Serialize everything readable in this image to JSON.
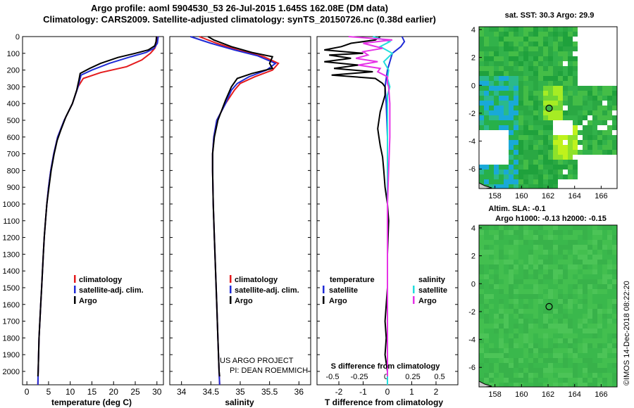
{
  "header": {
    "line1": "Argo profile: aoml 5904530_53 26-Jul-2015 1.645S 162.08E (DM data)",
    "line2": "Climatology: CARS2009. Satellite-adjusted climatology: synTS_20150726.nc (0.38d earlier)"
  },
  "colors": {
    "climatology": "#e41a1c",
    "satellite": "#1f2bd6",
    "argo": "#000000",
    "sat_salinity": "#22dddd",
    "argo_salinity": "#e633e6"
  },
  "chart_data": [
    {
      "type": "line",
      "name": "temperature",
      "xlabel": "temperature (deg C)",
      "xlim": [
        -1,
        31.5
      ],
      "xticks": [
        0,
        5,
        10,
        15,
        20,
        25,
        30
      ],
      "ylim": [
        2080,
        0
      ],
      "yticks": [
        0,
        100,
        200,
        300,
        400,
        500,
        600,
        700,
        800,
        900,
        1000,
        1100,
        1200,
        1300,
        1400,
        1500,
        1600,
        1700,
        1800,
        1900,
        2000
      ],
      "legend": [
        "climatology",
        "satellite-adj. clim.",
        "Argo"
      ],
      "series": [
        {
          "name": "climatology",
          "points": [
            [
              30.2,
              0
            ],
            [
              30,
              40
            ],
            [
              29.5,
              70
            ],
            [
              28.5,
              100
            ],
            [
              26.5,
              140
            ],
            [
              23,
              180
            ],
            [
              17,
              215
            ],
            [
              13,
              250
            ],
            [
              11.8,
              300
            ],
            [
              10.5,
              400
            ],
            [
              8.6,
              500
            ],
            [
              7.1,
              600
            ],
            [
              6.2,
              700
            ],
            [
              5.5,
              800
            ],
            [
              5.0,
              900
            ],
            [
              4.6,
              1000
            ],
            [
              4.3,
              1100
            ],
            [
              4.0,
              1200
            ],
            [
              3.8,
              1300
            ],
            [
              3.6,
              1400
            ],
            [
              3.4,
              1500
            ],
            [
              3.2,
              1600
            ],
            [
              3.0,
              1700
            ],
            [
              2.8,
              1800
            ],
            [
              2.7,
              1900
            ],
            [
              2.6,
              2000
            ],
            [
              2.55,
              2080
            ]
          ]
        },
        {
          "name": "satellite-adj. clim.",
          "points": [
            [
              30.3,
              0
            ],
            [
              30.1,
              40
            ],
            [
              29.3,
              70
            ],
            [
              27.5,
              95
            ],
            [
              24,
              120
            ],
            [
              19,
              160
            ],
            [
              15,
              200
            ],
            [
              12.5,
              230
            ],
            [
              11.8,
              300
            ],
            [
              10.5,
              400
            ],
            [
              8.6,
              500
            ],
            [
              7.1,
              600
            ],
            [
              6.2,
              700
            ],
            [
              5.5,
              800
            ],
            [
              5.0,
              900
            ],
            [
              4.6,
              1000
            ],
            [
              4.3,
              1100
            ],
            [
              4.0,
              1200
            ],
            [
              3.8,
              1300
            ],
            [
              3.6,
              1400
            ],
            [
              3.4,
              1500
            ],
            [
              3.2,
              1600
            ],
            [
              3.0,
              1700
            ],
            [
              2.8,
              1800
            ],
            [
              2.7,
              1900
            ],
            [
              2.6,
              2000
            ],
            [
              2.55,
              2080
            ]
          ]
        },
        {
          "name": "Argo",
          "points": [
            [
              29.9,
              0
            ],
            [
              29.8,
              30
            ],
            [
              29.5,
              55
            ],
            [
              28,
              80
            ],
            [
              25,
              100
            ],
            [
              21,
              125
            ],
            [
              17,
              160
            ],
            [
              14.5,
              190
            ],
            [
              12.3,
              220
            ],
            [
              12,
              260
            ],
            [
              11.5,
              320
            ],
            [
              10.5,
              400
            ],
            [
              9,
              480
            ],
            [
              7.8,
              560
            ],
            [
              7,
              620
            ],
            [
              6.3,
              700
            ],
            [
              5.6,
              800
            ],
            [
              5.1,
              900
            ],
            [
              4.6,
              1000
            ],
            [
              4.3,
              1100
            ],
            [
              4.0,
              1200
            ],
            [
              3.8,
              1300
            ],
            [
              3.6,
              1400
            ],
            [
              3.4,
              1500
            ],
            [
              3.2,
              1600
            ],
            [
              3.0,
              1700
            ],
            [
              2.8,
              1800
            ],
            [
              2.7,
              1900
            ],
            [
              2.6,
              2000
            ],
            [
              2.55,
              2030
            ]
          ]
        }
      ]
    },
    {
      "type": "line",
      "name": "salinity",
      "xlabel": "salinity",
      "xlim": [
        33.8,
        36.2
      ],
      "xticks": [
        34,
        34.5,
        35,
        35.5,
        36
      ],
      "ylim": [
        2080,
        0
      ],
      "legend": [
        "climatology",
        "satellite-adj. clim.",
        "Argo"
      ],
      "annotation": [
        "US ARGO PROJECT",
        "PI: DEAN ROEMMICH"
      ],
      "series": [
        {
          "name": "climatology",
          "points": [
            [
              34.3,
              0
            ],
            [
              34.6,
              40
            ],
            [
              34.95,
              80
            ],
            [
              35.4,
              120
            ],
            [
              35.65,
              160
            ],
            [
              35.55,
              200
            ],
            [
              35.25,
              240
            ],
            [
              35.0,
              280
            ],
            [
              34.9,
              320
            ],
            [
              34.75,
              400
            ],
            [
              34.6,
              500
            ],
            [
              34.55,
              600
            ],
            [
              34.53,
              700
            ],
            [
              34.53,
              800
            ],
            [
              34.54,
              1000
            ],
            [
              34.56,
              1200
            ],
            [
              34.58,
              1400
            ],
            [
              34.6,
              1600
            ],
            [
              34.62,
              1800
            ],
            [
              34.64,
              2000
            ],
            [
              34.65,
              2080
            ]
          ]
        },
        {
          "name": "satellite-adj. clim.",
          "points": [
            [
              34.15,
              0
            ],
            [
              34.5,
              40
            ],
            [
              34.9,
              80
            ],
            [
              35.3,
              115
            ],
            [
              35.6,
              160
            ],
            [
              35.45,
              200
            ],
            [
              35.15,
              240
            ],
            [
              34.95,
              280
            ],
            [
              34.85,
              320
            ],
            [
              34.75,
              400
            ],
            [
              34.6,
              500
            ],
            [
              34.55,
              600
            ],
            [
              34.53,
              700
            ],
            [
              34.53,
              800
            ],
            [
              34.54,
              1000
            ],
            [
              34.56,
              1200
            ],
            [
              34.58,
              1400
            ],
            [
              34.6,
              1600
            ],
            [
              34.62,
              1800
            ],
            [
              34.64,
              2000
            ],
            [
              34.65,
              2080
            ]
          ]
        },
        {
          "name": "Argo",
          "points": [
            [
              34.45,
              0
            ],
            [
              34.55,
              20
            ],
            [
              34.85,
              60
            ],
            [
              35.2,
              95
            ],
            [
              35.55,
              120
            ],
            [
              35.5,
              160
            ],
            [
              35.55,
              190
            ],
            [
              35.2,
              220
            ],
            [
              34.95,
              250
            ],
            [
              34.85,
              300
            ],
            [
              34.75,
              380
            ],
            [
              34.62,
              500
            ],
            [
              34.56,
              600
            ],
            [
              34.53,
              700
            ],
            [
              34.53,
              800
            ],
            [
              34.54,
              1000
            ],
            [
              34.56,
              1200
            ],
            [
              34.58,
              1400
            ],
            [
              34.6,
              1600
            ],
            [
              34.62,
              1800
            ],
            [
              34.64,
              2000
            ],
            [
              34.65,
              2030
            ]
          ]
        }
      ]
    },
    {
      "type": "line",
      "name": "differences",
      "xlabel": "T difference from climatology",
      "title": "S difference from climatology",
      "xlim": [
        -2.9,
        2.9
      ],
      "xticks": [
        -2,
        -1,
        0,
        1,
        2
      ],
      "xticks_top": [
        "-0.5",
        "-0.25",
        "0",
        "0.25",
        "0.5"
      ],
      "ylim": [
        2080,
        0
      ],
      "legend_left": [
        "temperature",
        "satellite",
        "Argo"
      ],
      "legend_right": [
        "salinity",
        "satellite",
        "Argo"
      ],
      "series": [
        {
          "name": "temperature satellite",
          "points": [
            [
              0.6,
              0
            ],
            [
              0.7,
              30
            ],
            [
              0.55,
              60
            ],
            [
              0.2,
              100
            ],
            [
              0,
              200
            ],
            [
              -0.1,
              300
            ],
            [
              -0.05,
              400
            ],
            [
              0,
              600
            ],
            [
              0,
              1000
            ],
            [
              0,
              1500
            ],
            [
              0,
              2000
            ],
            [
              0,
              2080
            ]
          ]
        },
        {
          "name": "temperature Argo",
          "points": [
            [
              -0.3,
              0
            ],
            [
              -0.5,
              20
            ],
            [
              -1.5,
              40
            ],
            [
              -1.9,
              60
            ],
            [
              -2.6,
              80
            ],
            [
              -1.0,
              100
            ],
            [
              -2.4,
              110
            ],
            [
              -1.5,
              130
            ],
            [
              -2.6,
              150
            ],
            [
              -1.2,
              170
            ],
            [
              -2.2,
              190
            ],
            [
              -0.6,
              210
            ],
            [
              -2.3,
              230
            ],
            [
              -0.5,
              250
            ],
            [
              -0.2,
              280
            ],
            [
              -0.1,
              300
            ],
            [
              -0.1,
              350
            ],
            [
              -0.3,
              450
            ],
            [
              -0.4,
              550
            ],
            [
              -0.35,
              600
            ],
            [
              -0.3,
              650
            ],
            [
              -0.2,
              720
            ],
            [
              -0.15,
              800
            ],
            [
              -0.1,
              900
            ],
            [
              0,
              1000
            ],
            [
              0.05,
              1100
            ],
            [
              0,
              1300
            ],
            [
              0,
              1500
            ],
            [
              -0.1,
              1700
            ],
            [
              -0.05,
              1800
            ],
            [
              -0.1,
              1900
            ],
            [
              0,
              2000
            ],
            [
              0,
              2030
            ]
          ]
        },
        {
          "name": "salinity satellite",
          "points": [
            [
              -0.6,
              0
            ],
            [
              0.1,
              30
            ],
            [
              -0.3,
              60
            ],
            [
              0.2,
              100
            ],
            [
              -0.15,
              150
            ],
            [
              0.05,
              200
            ],
            [
              0,
              250
            ],
            [
              0.1,
              300
            ],
            [
              0,
              350
            ],
            [
              0,
              500
            ],
            [
              0,
              1000
            ],
            [
              0,
              1500
            ],
            [
              0,
              2000
            ],
            [
              0,
              2080
            ]
          ]
        },
        {
          "name": "salinity Argo",
          "points": [
            [
              -1.6,
              0
            ],
            [
              0.2,
              20
            ],
            [
              -1.0,
              40
            ],
            [
              -0.6,
              55
            ],
            [
              -0.2,
              70
            ],
            [
              -1.0,
              90
            ],
            [
              -0.8,
              110
            ],
            [
              -1.3,
              130
            ],
            [
              -0.4,
              150
            ],
            [
              -1.2,
              170
            ],
            [
              -0.3,
              190
            ],
            [
              -0.4,
              210
            ],
            [
              0,
              240
            ],
            [
              0,
              280
            ],
            [
              0.05,
              300
            ],
            [
              0.1,
              400
            ],
            [
              0.1,
              600
            ],
            [
              0.05,
              800
            ],
            [
              0,
              1000
            ],
            [
              0,
              1500
            ],
            [
              0,
              2000
            ],
            [
              0,
              2030
            ]
          ]
        }
      ]
    },
    {
      "type": "heatmap",
      "name": "sst-map",
      "title": "sat. SST: 30.3 Argo: 29.9",
      "xticks": [
        158,
        160,
        162,
        164,
        166
      ],
      "yticks": [
        4,
        2,
        0,
        -2,
        -4,
        -6
      ],
      "xlim": [
        156.8,
        167.2
      ],
      "ylim": [
        -7.4,
        4.2
      ],
      "marker": [
        162.08,
        -1.645
      ]
    },
    {
      "type": "heatmap",
      "name": "sla-map",
      "title_line1": "Altim. SLA: -0.1",
      "title_line2": "Argo h1000: -0.13 h2000: -0.15",
      "xticks": [
        158,
        160,
        162,
        164,
        166
      ],
      "yticks": [
        4,
        2,
        0,
        -2,
        -4,
        -6
      ],
      "xlim": [
        156.8,
        167.2
      ],
      "ylim": [
        -7.4,
        4.2
      ],
      "marker": [
        162.08,
        -1.645
      ]
    }
  ],
  "footer": "©IMOS 14-Dec-2018 08:22:20"
}
